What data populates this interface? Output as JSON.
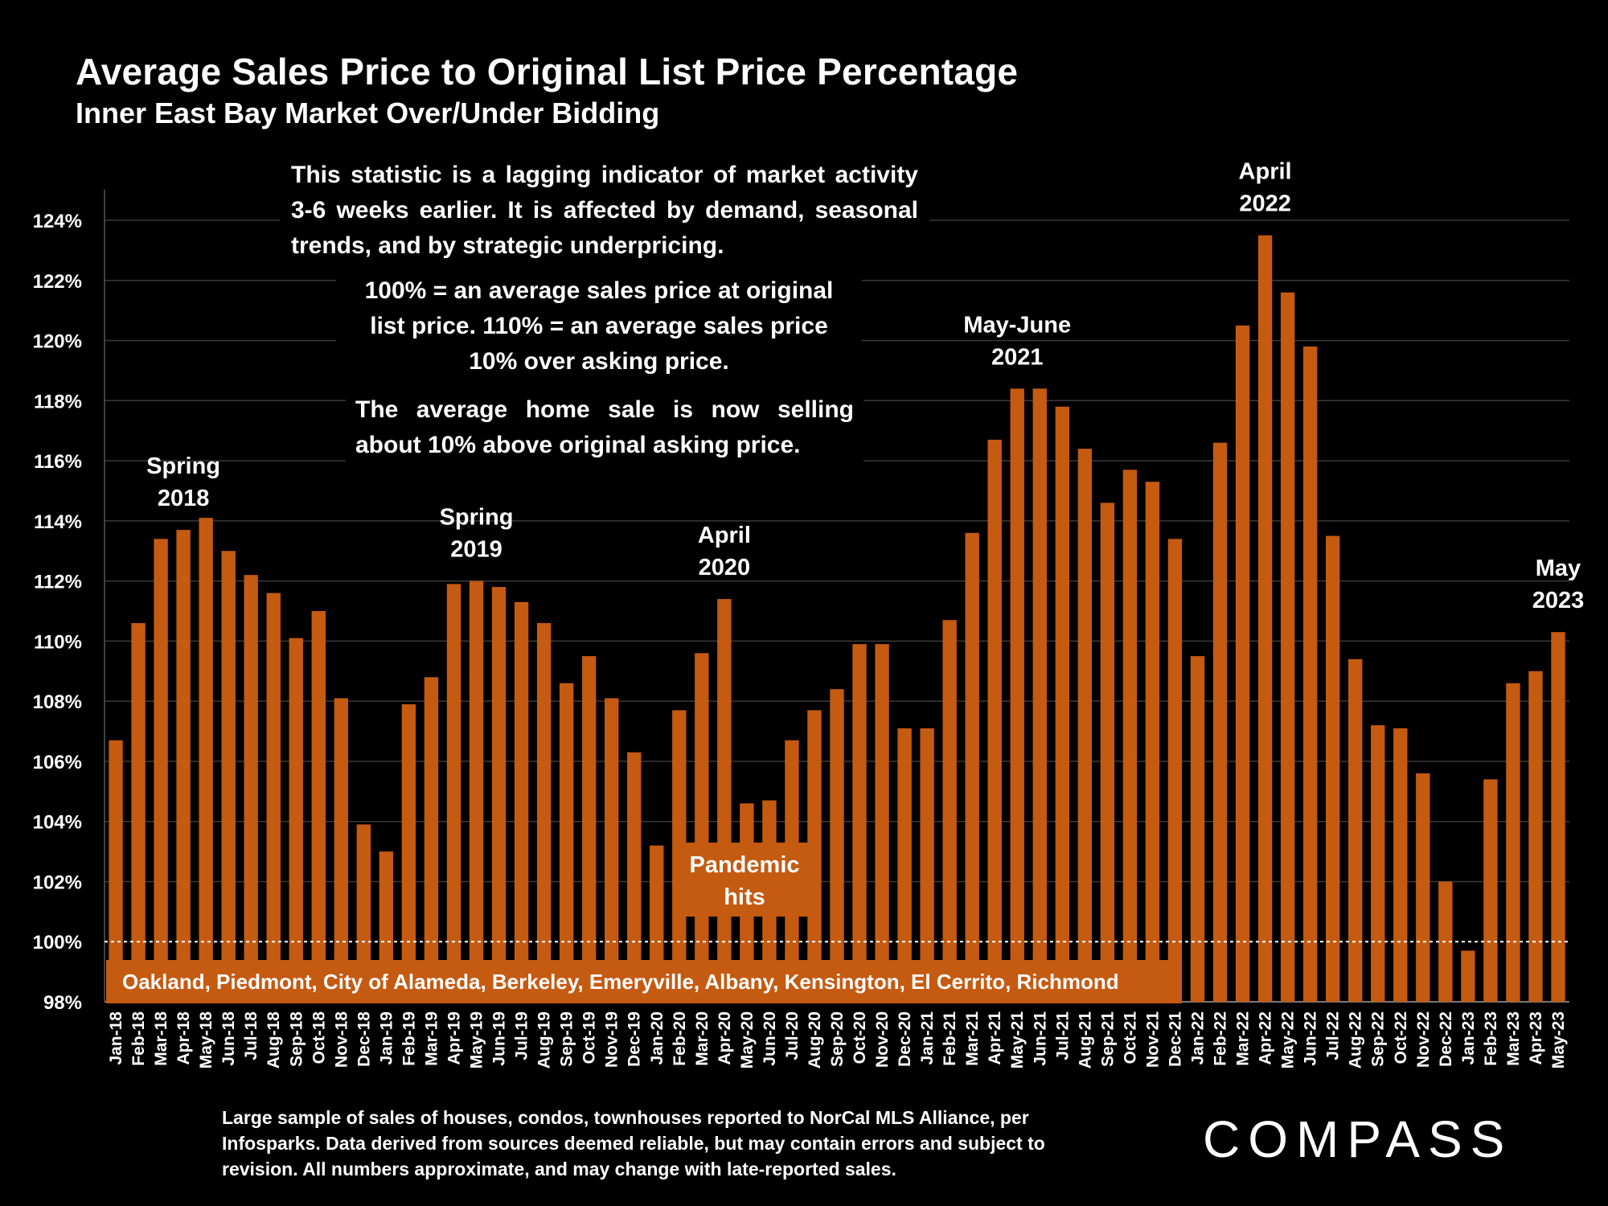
{
  "chart_data": {
    "type": "bar",
    "title": "Average Sales Price to Original List Price Percentage",
    "subtitle": "Inner East Bay Market Over/Under Bidding",
    "ylim": [
      98,
      124
    ],
    "yticks": [
      "98%",
      "100%",
      "102%",
      "104%",
      "106%",
      "108%",
      "110%",
      "112%",
      "114%",
      "116%",
      "118%",
      "120%",
      "122%",
      "124%"
    ],
    "bar_color": "#c55a11",
    "grid": true,
    "reference_line": 100,
    "categories": [
      "Jan-18",
      "Feb-18",
      "Mar-18",
      "Apr-18",
      "May-18",
      "Jun-18",
      "Jul-18",
      "Aug-18",
      "Sep-18",
      "Oct-18",
      "Nov-18",
      "Dec-18",
      "Jan-19",
      "Feb-19",
      "Mar-19",
      "Apr-19",
      "May-19",
      "Jun-19",
      "Jul-19",
      "Aug-19",
      "Sep-19",
      "Oct-19",
      "Nov-19",
      "Dec-19",
      "Jan-20",
      "Feb-20",
      "Mar-20",
      "Apr-20",
      "May-20",
      "Jun-20",
      "Jul-20",
      "Aug-20",
      "Sep-20",
      "Oct-20",
      "Nov-20",
      "Dec-20",
      "Jan-21",
      "Feb-21",
      "Mar-21",
      "Apr-21",
      "May-21",
      "Jun-21",
      "Jul-21",
      "Aug-21",
      "Sep-21",
      "Oct-21",
      "Nov-21",
      "Dec-21",
      "Jan-22",
      "Feb-22",
      "Mar-22",
      "Apr-22",
      "May-22",
      "Jun-22",
      "Jul-22",
      "Aug-22",
      "Sep-22",
      "Oct-22",
      "Nov-22",
      "Dec-22",
      "Jan-23",
      "Feb-23",
      "Mar-23",
      "Apr-23",
      "May-23"
    ],
    "values": [
      106.7,
      110.6,
      113.4,
      113.7,
      114.1,
      113.0,
      112.2,
      111.6,
      110.1,
      111.0,
      108.1,
      103.9,
      103.0,
      107.9,
      108.8,
      111.9,
      112.0,
      111.8,
      111.3,
      110.6,
      108.6,
      109.5,
      108.1,
      106.3,
      103.2,
      107.7,
      109.6,
      111.4,
      104.6,
      104.7,
      106.7,
      107.7,
      108.4,
      109.9,
      109.9,
      107.1,
      107.1,
      110.7,
      113.6,
      116.7,
      118.4,
      118.4,
      117.8,
      116.4,
      114.6,
      115.7,
      115.3,
      113.4,
      109.5,
      116.6,
      120.5,
      123.5,
      121.6,
      119.8,
      113.5,
      109.4,
      107.2,
      107.1,
      105.6,
      102.0,
      99.7,
      105.4,
      108.6,
      109.0,
      110.3
    ],
    "annotations": [
      {
        "lines": [
          "Spring",
          "2018"
        ],
        "category": "Apr-18"
      },
      {
        "lines": [
          "Spring",
          "2019"
        ],
        "category": "May-19"
      },
      {
        "lines": [
          "April",
          "2020"
        ],
        "category": "Apr-20"
      },
      {
        "lines": [
          "May-June",
          "2021"
        ],
        "category": "May-21"
      },
      {
        "lines": [
          "April",
          "2022"
        ],
        "category": "Apr-22"
      },
      {
        "lines": [
          "May",
          "2023"
        ],
        "category": "May-23"
      }
    ]
  },
  "notes": {
    "note1": "This statistic is a lagging indicator of market activity 3-6 weeks earlier. It is affected by demand, seasonal trends, and by strategic underpricing.",
    "note2": "100% = an average sales price at original list price. 110% = an average sales price 10% over asking price.",
    "note3": "The average home sale is now selling about 10% above original asking price."
  },
  "pandemic_label": "Pandemic hits",
  "cities_label": "Oakland, Piedmont, City of Alameda, Berkeley, Emeryville, Albany, Kensington, El Cerrito, Richmond",
  "footer": "Large sample of sales of houses, condos, townhouses reported to NorCal MLS Alliance, per Infosparks. Data derived from sources deemed reliable, but may contain errors and subject to revision. All numbers approximate, and may change with late-reported sales.",
  "logo": "COMPASS"
}
